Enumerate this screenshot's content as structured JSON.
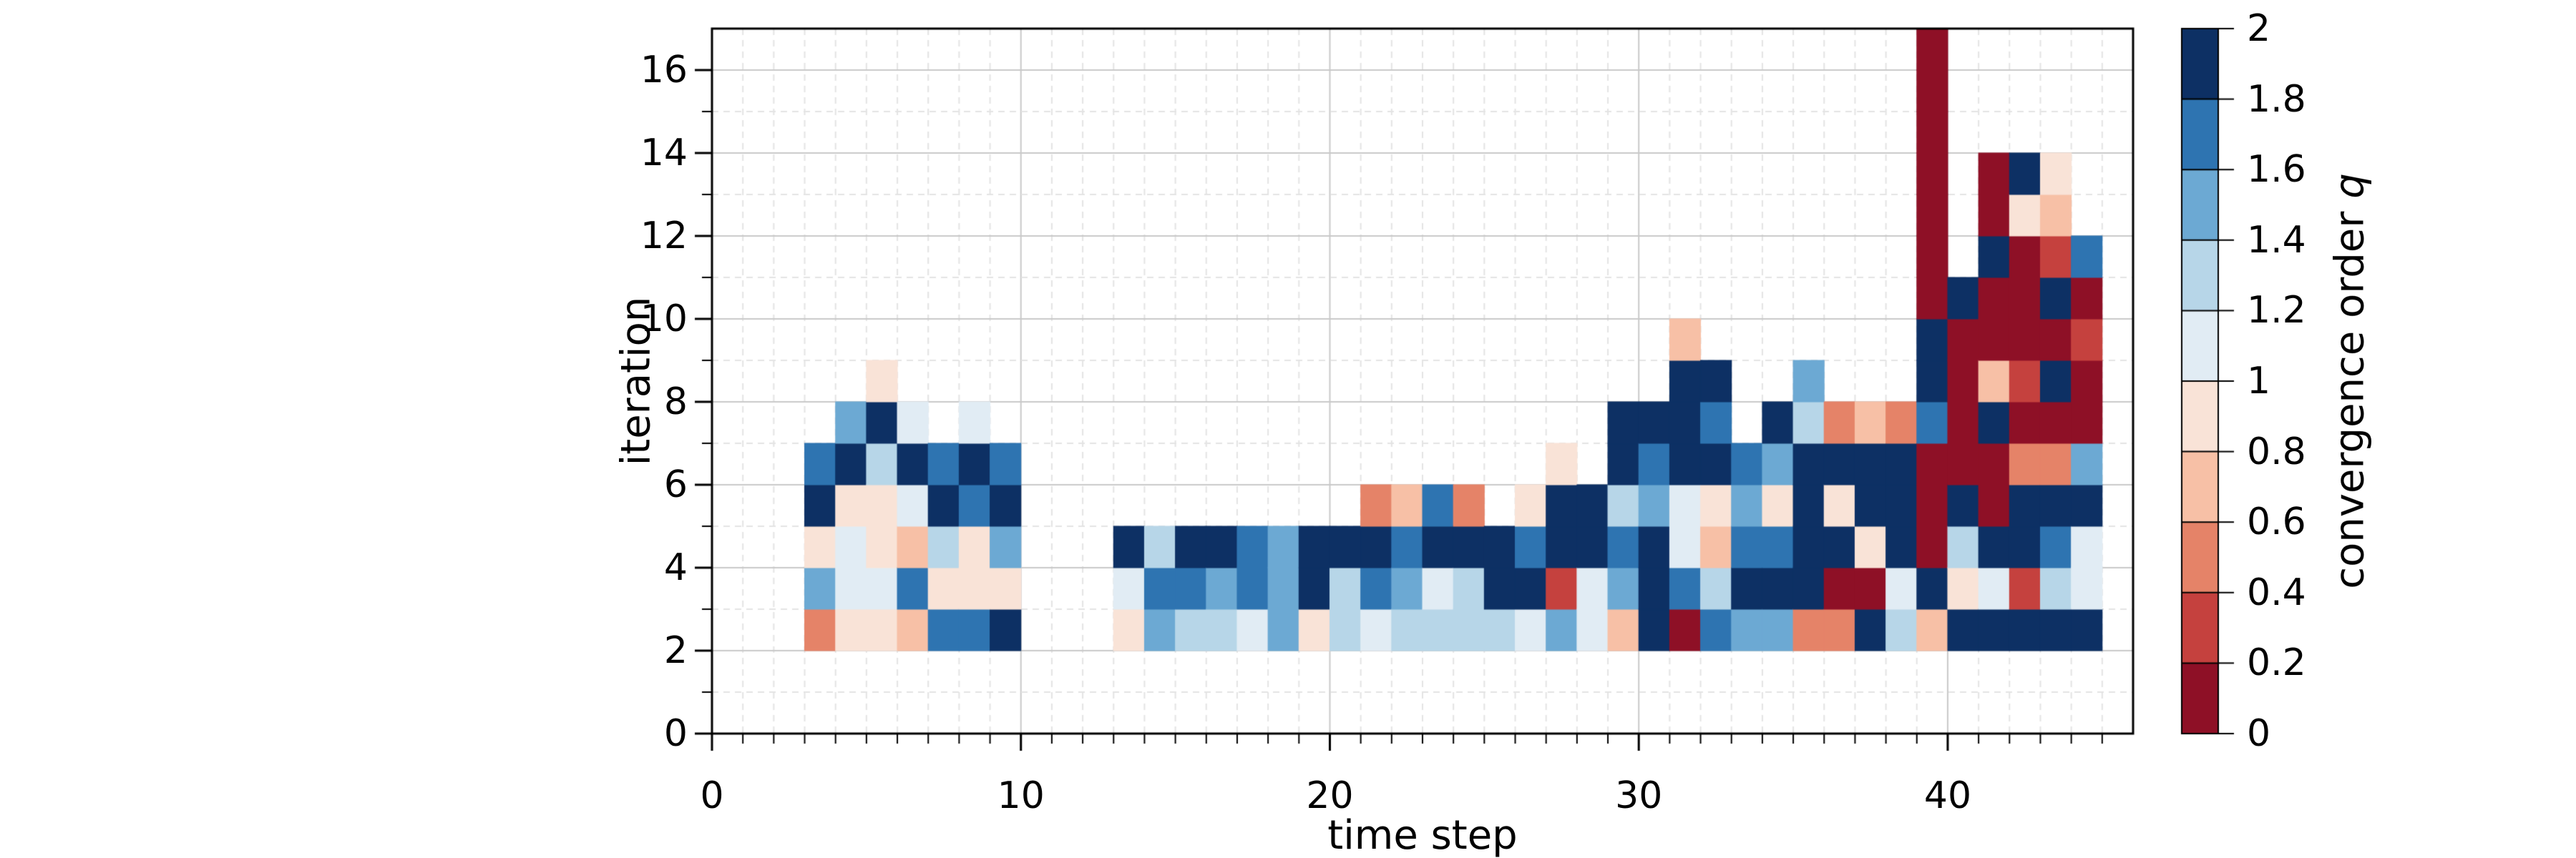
{
  "chart_data": {
    "type": "heatmap",
    "xlabel": "time step",
    "ylabel": "iteration",
    "colorbar_label_prefix": "convergence order ",
    "colorbar_label_var": "q",
    "xlim": [
      0,
      46
    ],
    "ylim": [
      0,
      17
    ],
    "grid": "on",
    "x_ticks": {
      "values": [
        0,
        10,
        20,
        30,
        40
      ],
      "labels": [
        "0",
        "10",
        "20",
        "30",
        "40"
      ]
    },
    "y_ticks": {
      "values": [
        0,
        2,
        4,
        6,
        8,
        10,
        12,
        14,
        16
      ],
      "labels": [
        "0",
        "2",
        "4",
        "6",
        "8",
        "10",
        "12",
        "14",
        "16"
      ]
    },
    "colorbar_ticks": {
      "values": [
        0,
        0.2,
        0.4,
        0.6,
        0.8,
        1,
        1.2,
        1.4,
        1.6,
        1.8,
        2
      ],
      "labels": [
        "0",
        "0.2",
        "0.4",
        "0.6",
        "0.8",
        "1",
        "1.2",
        "1.4",
        "1.6",
        "1.8",
        "2"
      ]
    },
    "colorbar_range": [
      0,
      2
    ],
    "levels": [
      {
        "q": 0.1,
        "range": [
          0.0,
          0.2
        ],
        "color": "#8e1026"
      },
      {
        "q": 0.3,
        "range": [
          0.2,
          0.4
        ],
        "color": "#c5413e"
      },
      {
        "q": 0.5,
        "range": [
          0.4,
          0.6
        ],
        "color": "#e58368"
      },
      {
        "q": 0.7,
        "range": [
          0.6,
          0.8
        ],
        "color": "#f7c0a6"
      },
      {
        "q": 0.9,
        "range": [
          0.8,
          1.0
        ],
        "color": "#f9e3d7"
      },
      {
        "q": 1.1,
        "range": [
          1.0,
          1.2
        ],
        "color": "#e1ecf4"
      },
      {
        "q": 1.3,
        "range": [
          1.2,
          1.4
        ],
        "color": "#b7d6e8"
      },
      {
        "q": 1.5,
        "range": [
          1.4,
          1.6
        ],
        "color": "#6ca9d3"
      },
      {
        "q": 1.7,
        "range": [
          1.6,
          1.8
        ],
        "color": "#2e74b1"
      },
      {
        "q": 1.9,
        "range": [
          1.8,
          2.0
        ],
        "color": "#0d3064"
      }
    ],
    "grid_colors": {
      "major": "#c9c9c9",
      "minor": "#e4e4e4"
    },
    "columns": [
      {
        "t": 3,
        "cells": [
          [
            2,
            0.5
          ],
          [
            3,
            1.5
          ],
          [
            4,
            0.9
          ],
          [
            5,
            1.9
          ],
          [
            6,
            1.7
          ]
        ]
      },
      {
        "t": 4,
        "cells": [
          [
            2,
            0.9
          ],
          [
            3,
            1.1
          ],
          [
            4,
            1.1
          ],
          [
            5,
            0.9
          ],
          [
            6,
            1.9
          ],
          [
            7,
            1.5
          ]
        ]
      },
      {
        "t": 5,
        "cells": [
          [
            2,
            0.9
          ],
          [
            3,
            1.1
          ],
          [
            4,
            0.9
          ],
          [
            5,
            0.9
          ],
          [
            6,
            1.3
          ],
          [
            7,
            1.9
          ],
          [
            8,
            0.9
          ]
        ]
      },
      {
        "t": 6,
        "cells": [
          [
            2,
            0.7
          ],
          [
            3,
            1.7
          ],
          [
            4,
            0.7
          ],
          [
            5,
            1.1
          ],
          [
            6,
            1.9
          ],
          [
            7,
            1.1
          ]
        ]
      },
      {
        "t": 7,
        "cells": [
          [
            2,
            1.7
          ],
          [
            3,
            0.9
          ],
          [
            4,
            1.3
          ],
          [
            5,
            1.9
          ],
          [
            6,
            1.7
          ]
        ]
      },
      {
        "t": 8,
        "cells": [
          [
            2,
            1.7
          ],
          [
            3,
            0.9
          ],
          [
            4,
            0.9
          ],
          [
            5,
            1.7
          ],
          [
            6,
            1.9
          ],
          [
            7,
            1.1
          ]
        ]
      },
      {
        "t": 9,
        "cells": [
          [
            2,
            1.9
          ],
          [
            3,
            0.9
          ],
          [
            4,
            1.5
          ],
          [
            5,
            1.9
          ],
          [
            6,
            1.7
          ]
        ]
      },
      {
        "t": 13,
        "cells": [
          [
            2,
            0.9
          ],
          [
            3,
            1.1
          ],
          [
            4,
            1.9
          ]
        ]
      },
      {
        "t": 14,
        "cells": [
          [
            2,
            1.5
          ],
          [
            3,
            1.7
          ],
          [
            4,
            1.3
          ]
        ]
      },
      {
        "t": 15,
        "cells": [
          [
            2,
            1.3
          ],
          [
            3,
            1.7
          ],
          [
            4,
            1.9
          ]
        ]
      },
      {
        "t": 16,
        "cells": [
          [
            2,
            1.3
          ],
          [
            3,
            1.5
          ],
          [
            4,
            1.9
          ]
        ]
      },
      {
        "t": 17,
        "cells": [
          [
            2,
            1.1
          ],
          [
            3,
            1.7
          ],
          [
            4,
            1.7
          ]
        ]
      },
      {
        "t": 18,
        "cells": [
          [
            2,
            1.5
          ],
          [
            3,
            1.5
          ],
          [
            4,
            1.5
          ]
        ]
      },
      {
        "t": 19,
        "cells": [
          [
            2,
            0.9
          ],
          [
            3,
            1.9
          ],
          [
            4,
            1.9
          ]
        ]
      },
      {
        "t": 20,
        "cells": [
          [
            2,
            1.3
          ],
          [
            3,
            1.3
          ],
          [
            4,
            1.9
          ]
        ]
      },
      {
        "t": 21,
        "cells": [
          [
            2,
            1.1
          ],
          [
            3,
            1.7
          ],
          [
            4,
            1.9
          ],
          [
            5,
            0.5
          ]
        ]
      },
      {
        "t": 22,
        "cells": [
          [
            2,
            1.3
          ],
          [
            3,
            1.5
          ],
          [
            4,
            1.7
          ],
          [
            5,
            0.7
          ]
        ]
      },
      {
        "t": 23,
        "cells": [
          [
            2,
            1.3
          ],
          [
            3,
            1.1
          ],
          [
            4,
            1.9
          ],
          [
            5,
            1.7
          ]
        ]
      },
      {
        "t": 24,
        "cells": [
          [
            2,
            1.3
          ],
          [
            3,
            1.3
          ],
          [
            4,
            1.9
          ],
          [
            5,
            0.5
          ]
        ]
      },
      {
        "t": 25,
        "cells": [
          [
            2,
            1.3
          ],
          [
            3,
            1.9
          ],
          [
            4,
            1.9
          ]
        ]
      },
      {
        "t": 26,
        "cells": [
          [
            2,
            1.1
          ],
          [
            3,
            1.9
          ],
          [
            4,
            1.7
          ],
          [
            5,
            0.9
          ]
        ]
      },
      {
        "t": 27,
        "cells": [
          [
            2,
            1.5
          ],
          [
            3,
            0.3
          ],
          [
            4,
            1.9
          ],
          [
            5,
            1.9
          ],
          [
            6,
            0.9
          ]
        ]
      },
      {
        "t": 28,
        "cells": [
          [
            2,
            1.1
          ],
          [
            3,
            1.1
          ],
          [
            4,
            1.9
          ],
          [
            5,
            1.9
          ]
        ]
      },
      {
        "t": 29,
        "cells": [
          [
            2,
            0.7
          ],
          [
            3,
            1.5
          ],
          [
            4,
            1.7
          ],
          [
            5,
            1.3
          ],
          [
            6,
            1.9
          ],
          [
            7,
            1.9
          ]
        ]
      },
      {
        "t": 30,
        "cells": [
          [
            2,
            1.9
          ],
          [
            3,
            1.9
          ],
          [
            4,
            1.9
          ],
          [
            5,
            1.5
          ],
          [
            6,
            1.7
          ],
          [
            7,
            1.9
          ]
        ]
      },
      {
        "t": 31,
        "cells": [
          [
            2,
            0.1
          ],
          [
            3,
            1.7
          ],
          [
            4,
            1.1
          ],
          [
            5,
            1.1
          ],
          [
            6,
            1.9
          ],
          [
            7,
            1.9
          ],
          [
            8,
            1.9
          ],
          [
            9,
            0.7
          ]
        ]
      },
      {
        "t": 32,
        "cells": [
          [
            2,
            1.7
          ],
          [
            3,
            1.3
          ],
          [
            4,
            0.7
          ],
          [
            5,
            0.9
          ],
          [
            6,
            1.9
          ],
          [
            7,
            1.7
          ],
          [
            8,
            1.9
          ]
        ]
      },
      {
        "t": 33,
        "cells": [
          [
            2,
            1.5
          ],
          [
            3,
            1.9
          ],
          [
            4,
            1.7
          ],
          [
            5,
            1.5
          ],
          [
            6,
            1.7
          ]
        ]
      },
      {
        "t": 34,
        "cells": [
          [
            2,
            1.5
          ],
          [
            3,
            1.9
          ],
          [
            4,
            1.7
          ],
          [
            5,
            0.9
          ],
          [
            6,
            1.5
          ],
          [
            7,
            1.9
          ]
        ]
      },
      {
        "t": 35,
        "cells": [
          [
            2,
            0.5
          ],
          [
            3,
            1.9
          ],
          [
            4,
            1.9
          ],
          [
            5,
            1.9
          ],
          [
            6,
            1.9
          ],
          [
            7,
            1.3
          ],
          [
            8,
            1.5
          ]
        ]
      },
      {
        "t": 36,
        "cells": [
          [
            2,
            0.5
          ],
          [
            3,
            0.1
          ],
          [
            4,
            1.9
          ],
          [
            5,
            0.9
          ],
          [
            6,
            1.9
          ],
          [
            7,
            0.5
          ]
        ]
      },
      {
        "t": 37,
        "cells": [
          [
            2,
            1.9
          ],
          [
            3,
            0.1
          ],
          [
            4,
            0.9
          ],
          [
            5,
            1.9
          ],
          [
            6,
            1.9
          ],
          [
            7,
            0.7
          ]
        ]
      },
      {
        "t": 38,
        "cells": [
          [
            2,
            1.3
          ],
          [
            3,
            1.1
          ],
          [
            4,
            1.9
          ],
          [
            5,
            1.9
          ],
          [
            6,
            1.9
          ],
          [
            7,
            0.5
          ]
        ]
      },
      {
        "t": 39,
        "cells": [
          [
            2,
            0.7
          ],
          [
            3,
            1.9
          ],
          [
            4,
            0.1
          ],
          [
            5,
            0.1
          ],
          [
            6,
            0.1
          ],
          [
            7,
            1.7
          ],
          [
            8,
            1.9
          ],
          [
            9,
            1.9
          ],
          [
            10,
            0.1
          ],
          [
            11,
            0.1
          ],
          [
            12,
            0.1
          ],
          [
            13,
            0.1
          ],
          [
            14,
            0.1
          ],
          [
            15,
            0.1
          ],
          [
            16,
            0.1
          ]
        ]
      },
      {
        "t": 40,
        "cells": [
          [
            2,
            1.9
          ],
          [
            3,
            0.9
          ],
          [
            4,
            1.3
          ],
          [
            5,
            1.9
          ],
          [
            6,
            0.1
          ],
          [
            7,
            0.1
          ],
          [
            8,
            0.1
          ],
          [
            9,
            0.1
          ],
          [
            10,
            1.9
          ]
        ]
      },
      {
        "t": 41,
        "cells": [
          [
            2,
            1.9
          ],
          [
            3,
            1.1
          ],
          [
            4,
            1.9
          ],
          [
            5,
            0.1
          ],
          [
            6,
            0.1
          ],
          [
            7,
            1.9
          ],
          [
            8,
            0.7
          ],
          [
            9,
            0.1
          ],
          [
            10,
            0.1
          ],
          [
            11,
            1.9
          ],
          [
            12,
            0.1
          ],
          [
            13,
            0.1
          ]
        ]
      },
      {
        "t": 42,
        "cells": [
          [
            2,
            1.9
          ],
          [
            3,
            0.3
          ],
          [
            4,
            1.9
          ],
          [
            5,
            1.9
          ],
          [
            6,
            0.5
          ],
          [
            7,
            0.1
          ],
          [
            8,
            0.3
          ],
          [
            9,
            0.1
          ],
          [
            10,
            0.1
          ],
          [
            11,
            0.1
          ],
          [
            12,
            0.9
          ],
          [
            13,
            1.9
          ]
        ]
      },
      {
        "t": 43,
        "cells": [
          [
            2,
            1.9
          ],
          [
            3,
            1.3
          ],
          [
            4,
            1.7
          ],
          [
            5,
            1.9
          ],
          [
            6,
            0.5
          ],
          [
            7,
            0.1
          ],
          [
            8,
            1.9
          ],
          [
            9,
            0.1
          ],
          [
            10,
            1.9
          ],
          [
            11,
            0.3
          ],
          [
            12,
            0.7
          ],
          [
            13,
            0.9
          ]
        ]
      },
      {
        "t": 44,
        "cells": [
          [
            2,
            1.9
          ],
          [
            3,
            1.1
          ],
          [
            4,
            1.1
          ],
          [
            5,
            1.9
          ],
          [
            6,
            1.5
          ],
          [
            7,
            0.1
          ],
          [
            8,
            0.1
          ],
          [
            9,
            0.3
          ],
          [
            10,
            0.1
          ],
          [
            11,
            1.7
          ]
        ]
      }
    ]
  }
}
